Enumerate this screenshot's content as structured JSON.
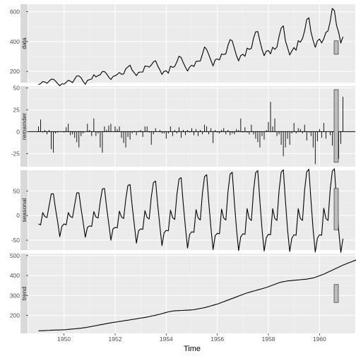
{
  "chart_data": {
    "type": "line",
    "xlabel": "Time",
    "x_ticks": [
      1950,
      1952,
      1954,
      1956,
      1958,
      1960
    ],
    "x_range": [
      1948.6,
      1961.4
    ],
    "start": 1949,
    "frequency": 12,
    "panels": [
      {
        "name": "data",
        "geom": "line",
        "ylim": [
          125,
          650
        ],
        "y_ticks": [
          200,
          400,
          600
        ],
        "range_bar": [
          315,
          405
        ],
        "values": [
          112,
          118,
          132,
          129,
          121,
          135,
          148,
          148,
          136,
          119,
          104,
          118,
          115,
          126,
          141,
          135,
          125,
          149,
          170,
          170,
          158,
          133,
          114,
          140,
          145,
          150,
          178,
          163,
          172,
          178,
          199,
          199,
          184,
          162,
          146,
          166,
          171,
          180,
          193,
          181,
          183,
          218,
          230,
          242,
          209,
          191,
          172,
          194,
          196,
          196,
          236,
          235,
          229,
          243,
          264,
          272,
          237,
          211,
          180,
          201,
          204,
          188,
          235,
          227,
          234,
          264,
          302,
          293,
          259,
          229,
          203,
          229,
          242,
          233,
          267,
          269,
          270,
          315,
          364,
          347,
          312,
          274,
          237,
          278,
          284,
          277,
          317,
          313,
          318,
          374,
          413,
          405,
          355,
          306,
          271,
          306,
          315,
          301,
          356,
          348,
          355,
          422,
          465,
          467,
          404,
          347,
          305,
          336,
          340,
          318,
          362,
          348,
          363,
          435,
          491,
          505,
          404,
          359,
          310,
          337,
          360,
          342,
          406,
          396,
          420,
          472,
          548,
          559,
          463,
          407,
          362,
          405,
          417,
          391,
          419,
          461,
          472,
          535,
          622,
          606,
          508,
          461,
          390,
          432
        ]
      },
      {
        "name": "remainder",
        "geom": "bar",
        "ylim": [
          -40,
          52
        ],
        "y_ticks": [
          -25,
          0,
          25,
          50
        ],
        "range_bar": [
          -35,
          48
        ],
        "values": [
          6,
          14,
          -1,
          2,
          -3,
          2,
          -20,
          -24,
          -2,
          -1,
          0,
          0,
          -1,
          5,
          9,
          -4,
          -3,
          -7,
          -12,
          -18,
          -5,
          -2,
          0,
          9,
          2,
          -5,
          15,
          -5,
          -2,
          -18,
          -24,
          6,
          2,
          7,
          9,
          0,
          6,
          3,
          6,
          -7,
          -13,
          -18,
          -6,
          -9,
          -2,
          1,
          -4,
          1,
          2,
          -6,
          6,
          6,
          -1,
          -15,
          -3,
          4,
          0,
          2,
          -2,
          -2,
          -8,
          -2,
          6,
          -5,
          2,
          -2,
          5,
          -7,
          2,
          -4,
          2,
          -1,
          4,
          -4,
          3,
          -5,
          2,
          -3,
          8,
          6,
          -3,
          4,
          -13,
          2,
          -1,
          -2,
          2,
          4,
          -3,
          2,
          -4,
          -2,
          -3,
          3,
          2,
          15,
          -1,
          5,
          -1,
          -3,
          8,
          -3,
          -8,
          -12,
          -18,
          -5,
          -9,
          2,
          11,
          34,
          6,
          15,
          -5,
          -3,
          -15,
          -28,
          -18,
          -8,
          -15,
          -2,
          10,
          -2,
          4,
          3,
          -2,
          8,
          -10,
          -1,
          -5,
          -18,
          -37,
          -11,
          3,
          -7,
          10,
          -8,
          0,
          -4,
          -16,
          38,
          -8,
          -31,
          -14,
          40
        ]
      },
      {
        "name": "seasonal",
        "geom": "line",
        "ylim": [
          -70,
          92
        ],
        "y_ticks": [
          -50,
          0,
          50
        ],
        "range_bar": [
          -29,
          55
        ],
        "values": [
          -17,
          -19,
          6,
          -2,
          -4,
          20,
          44,
          44,
          14,
          -12,
          -43,
          -22,
          -17,
          -19,
          6,
          -2,
          -4,
          22,
          46,
          46,
          14,
          -14,
          -44,
          -24,
          -21,
          -22,
          8,
          -3,
          -5,
          28,
          54,
          55,
          17,
          -16,
          -50,
          -27,
          -24,
          -25,
          9,
          -3,
          -6,
          33,
          61,
          63,
          20,
          -18,
          -56,
          -31,
          -27,
          -28,
          10,
          -4,
          -7,
          38,
          67,
          70,
          22,
          -21,
          -61,
          -35,
          -30,
          -31,
          11,
          -4,
          -8,
          42,
          74,
          77,
          24,
          -23,
          -66,
          -38,
          -33,
          -34,
          12,
          -5,
          -9,
          45,
          79,
          83,
          26,
          -25,
          -69,
          -41,
          -36,
          -37,
          13,
          -5,
          -9,
          48,
          84,
          88,
          28,
          -27,
          -71,
          -43,
          -37,
          -38,
          14,
          -6,
          -10,
          50,
          87,
          91,
          29,
          -28,
          -72,
          -45,
          -38,
          -39,
          14,
          -6,
          -10,
          51,
          88,
          93,
          29,
          -29,
          -73,
          -46,
          -39,
          -40,
          14,
          -6,
          -10,
          52,
          89,
          94,
          30,
          -29,
          -74,
          -46,
          -39,
          -40,
          15,
          -6,
          -10,
          52,
          90,
          95,
          30,
          -30,
          -75,
          -47
        ]
      },
      {
        "name": "trend",
        "geom": "line",
        "ylim": [
          110,
          510
        ],
        "y_ticks": [
          200,
          300,
          400,
          500
        ],
        "range_bar": [
          265,
          355
        ],
        "values": [
          123,
          123,
          124,
          124,
          125,
          125,
          126,
          126,
          127,
          127,
          127,
          128,
          128,
          129,
          130,
          131,
          132,
          133,
          134,
          135,
          136,
          138,
          139,
          141,
          143,
          145,
          147,
          149,
          151,
          153,
          155,
          157,
          159,
          161,
          163,
          165,
          166,
          168,
          170,
          171,
          173,
          175,
          176,
          178,
          180,
          181,
          183,
          185,
          187,
          188,
          190,
          192,
          194,
          197,
          199,
          201,
          204,
          206,
          209,
          212,
          215,
          218,
          220,
          222,
          223,
          224,
          224,
          225,
          225,
          226,
          226,
          227,
          228,
          229,
          231,
          233,
          235,
          237,
          239,
          242,
          245,
          248,
          251,
          254,
          257,
          261,
          265,
          269,
          273,
          277,
          281,
          285,
          289,
          293,
          297,
          301,
          305,
          309,
          313,
          316,
          319,
          322,
          325,
          328,
          331,
          334,
          337,
          340,
          344,
          348,
          352,
          356,
          360,
          364,
          367,
          369,
          371,
          373,
          374,
          375,
          376,
          377,
          378,
          379,
          380,
          381,
          382,
          384,
          386,
          388,
          391,
          395,
          399,
          403,
          407,
          412,
          417,
          422,
          427,
          432,
          437,
          442,
          447,
          452,
          456,
          461,
          465,
          469,
          473,
          477,
          481,
          485,
          489,
          493
        ]
      }
    ]
  }
}
